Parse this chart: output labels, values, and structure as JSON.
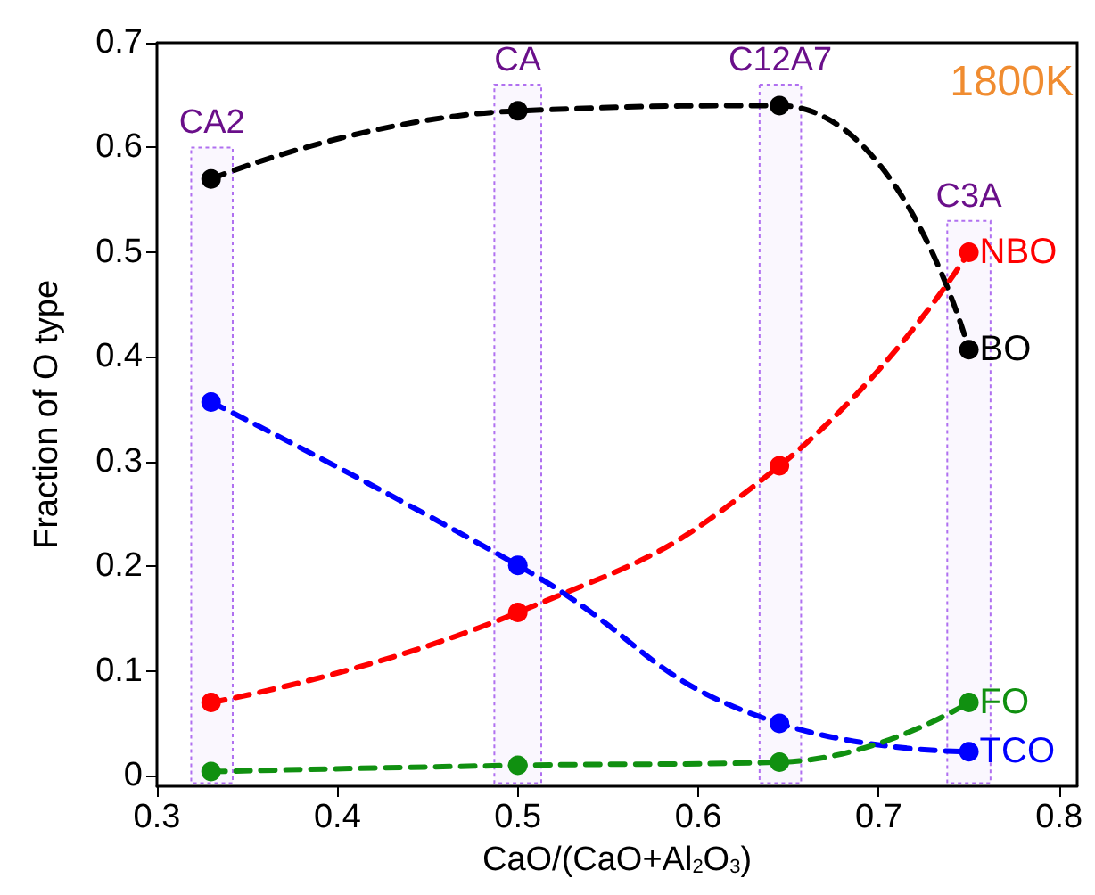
{
  "chart_data": {
    "type": "line",
    "xlabel": "CaO/(CaO+Al$_{2}$O$_{3}$)",
    "ylabel": "Fraction of O type",
    "x": [
      0.33,
      0.5,
      0.645,
      0.75
    ],
    "series": [
      {
        "name": "BO",
        "color": "#000000",
        "values": [
          0.57,
          0.635,
          0.64,
          0.407
        ]
      },
      {
        "name": "NBO",
        "color": "#ff0000",
        "values": [
          0.07,
          0.156,
          0.296,
          0.5
        ]
      },
      {
        "name": "TCO",
        "color": "#0000ff",
        "values": [
          0.357,
          0.201,
          0.05,
          0.023
        ]
      },
      {
        "name": "FO",
        "color": "#109010",
        "values": [
          0.004,
          0.01,
          0.013,
          0.07
        ]
      }
    ],
    "xlim": [
      0.3,
      0.81
    ],
    "ylim": [
      -0.01,
      0.7
    ],
    "xticks": [
      0.3,
      0.4,
      0.5,
      0.6,
      0.7,
      0.8
    ],
    "yticks": [
      0,
      0.1,
      0.2,
      0.3,
      0.4,
      0.5,
      0.6,
      0.7
    ],
    "bands": [
      {
        "axis": "x",
        "from": 0.319,
        "to": 0.342,
        "label": "CA2",
        "color": "#b070f0"
      },
      {
        "axis": "x",
        "from": 0.487,
        "to": 0.513,
        "label": "CA",
        "color": "#b070f0"
      },
      {
        "axis": "x",
        "from": 0.634,
        "to": 0.657,
        "label": "C12A7",
        "color": "#b070f0"
      },
      {
        "axis": "x",
        "from": 0.738,
        "to": 0.762,
        "label": "C3A",
        "color": "#b070f0"
      }
    ],
    "annotations": [
      "1800K"
    ],
    "grid": false,
    "legend": false,
    "marker": "circle",
    "line_style": "dashed"
  }
}
